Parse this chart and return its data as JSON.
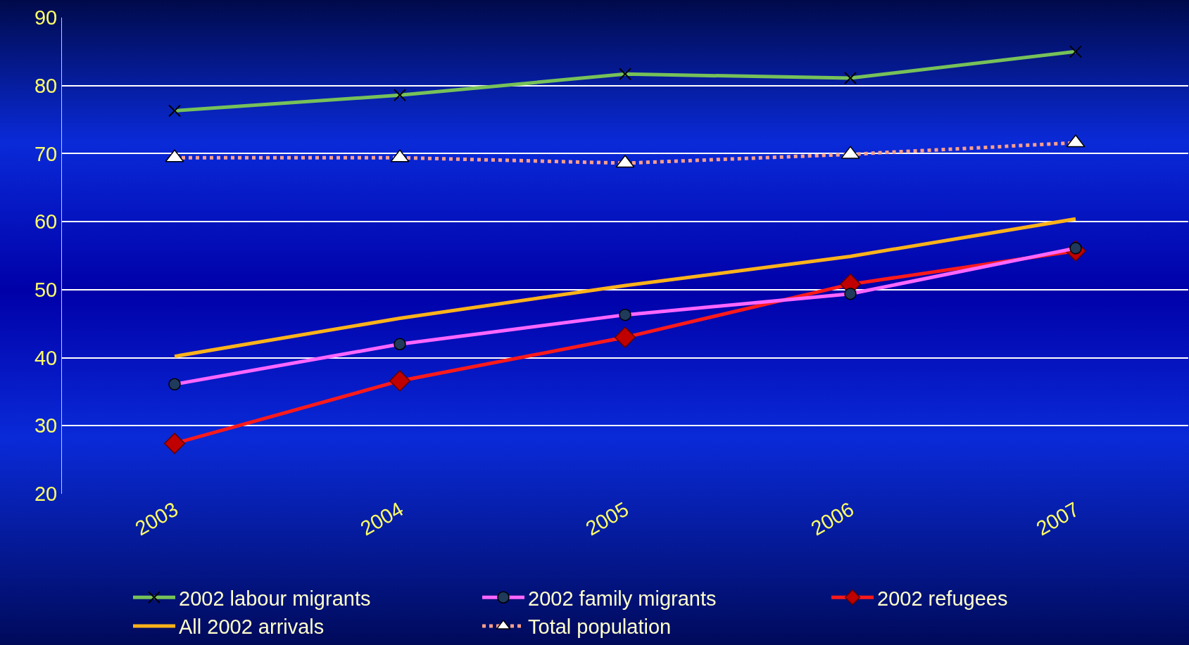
{
  "chart_data": {
    "type": "line",
    "categories": [
      "2003",
      "2004",
      "2005",
      "2006",
      "2007"
    ],
    "ylim": [
      20,
      90
    ],
    "yticks": [
      20,
      30,
      40,
      50,
      60,
      70,
      80,
      90
    ],
    "grid": "y",
    "legend": "bottom",
    "series": [
      {
        "name": "2002 labour migrants",
        "color": "#77c159",
        "marker": "cross",
        "line_style": "solid",
        "values": [
          76.3,
          78.6,
          81.7,
          81.1,
          85.0
        ]
      },
      {
        "name": "2002 family migrants",
        "color": "#ff66ff",
        "marker": "circle",
        "line_style": "solid",
        "values": [
          36.1,
          42.0,
          46.3,
          49.4,
          56.1
        ]
      },
      {
        "name": "2002 refugees",
        "color": "#ff1a1a",
        "marker": "diamond",
        "line_style": "solid",
        "values": [
          27.4,
          36.6,
          43.0,
          50.8,
          55.7
        ]
      },
      {
        "name": "All 2002 arrivals",
        "color": "#ffb31a",
        "marker": "none",
        "line_style": "solid",
        "values": [
          40.2,
          45.8,
          50.6,
          54.9,
          60.4
        ]
      },
      {
        "name": "Total population",
        "color": "#ff9f8a",
        "marker": "triangle",
        "line_style": "dotted",
        "values": [
          69.4,
          69.4,
          68.6,
          69.9,
          71.6
        ]
      }
    ]
  }
}
